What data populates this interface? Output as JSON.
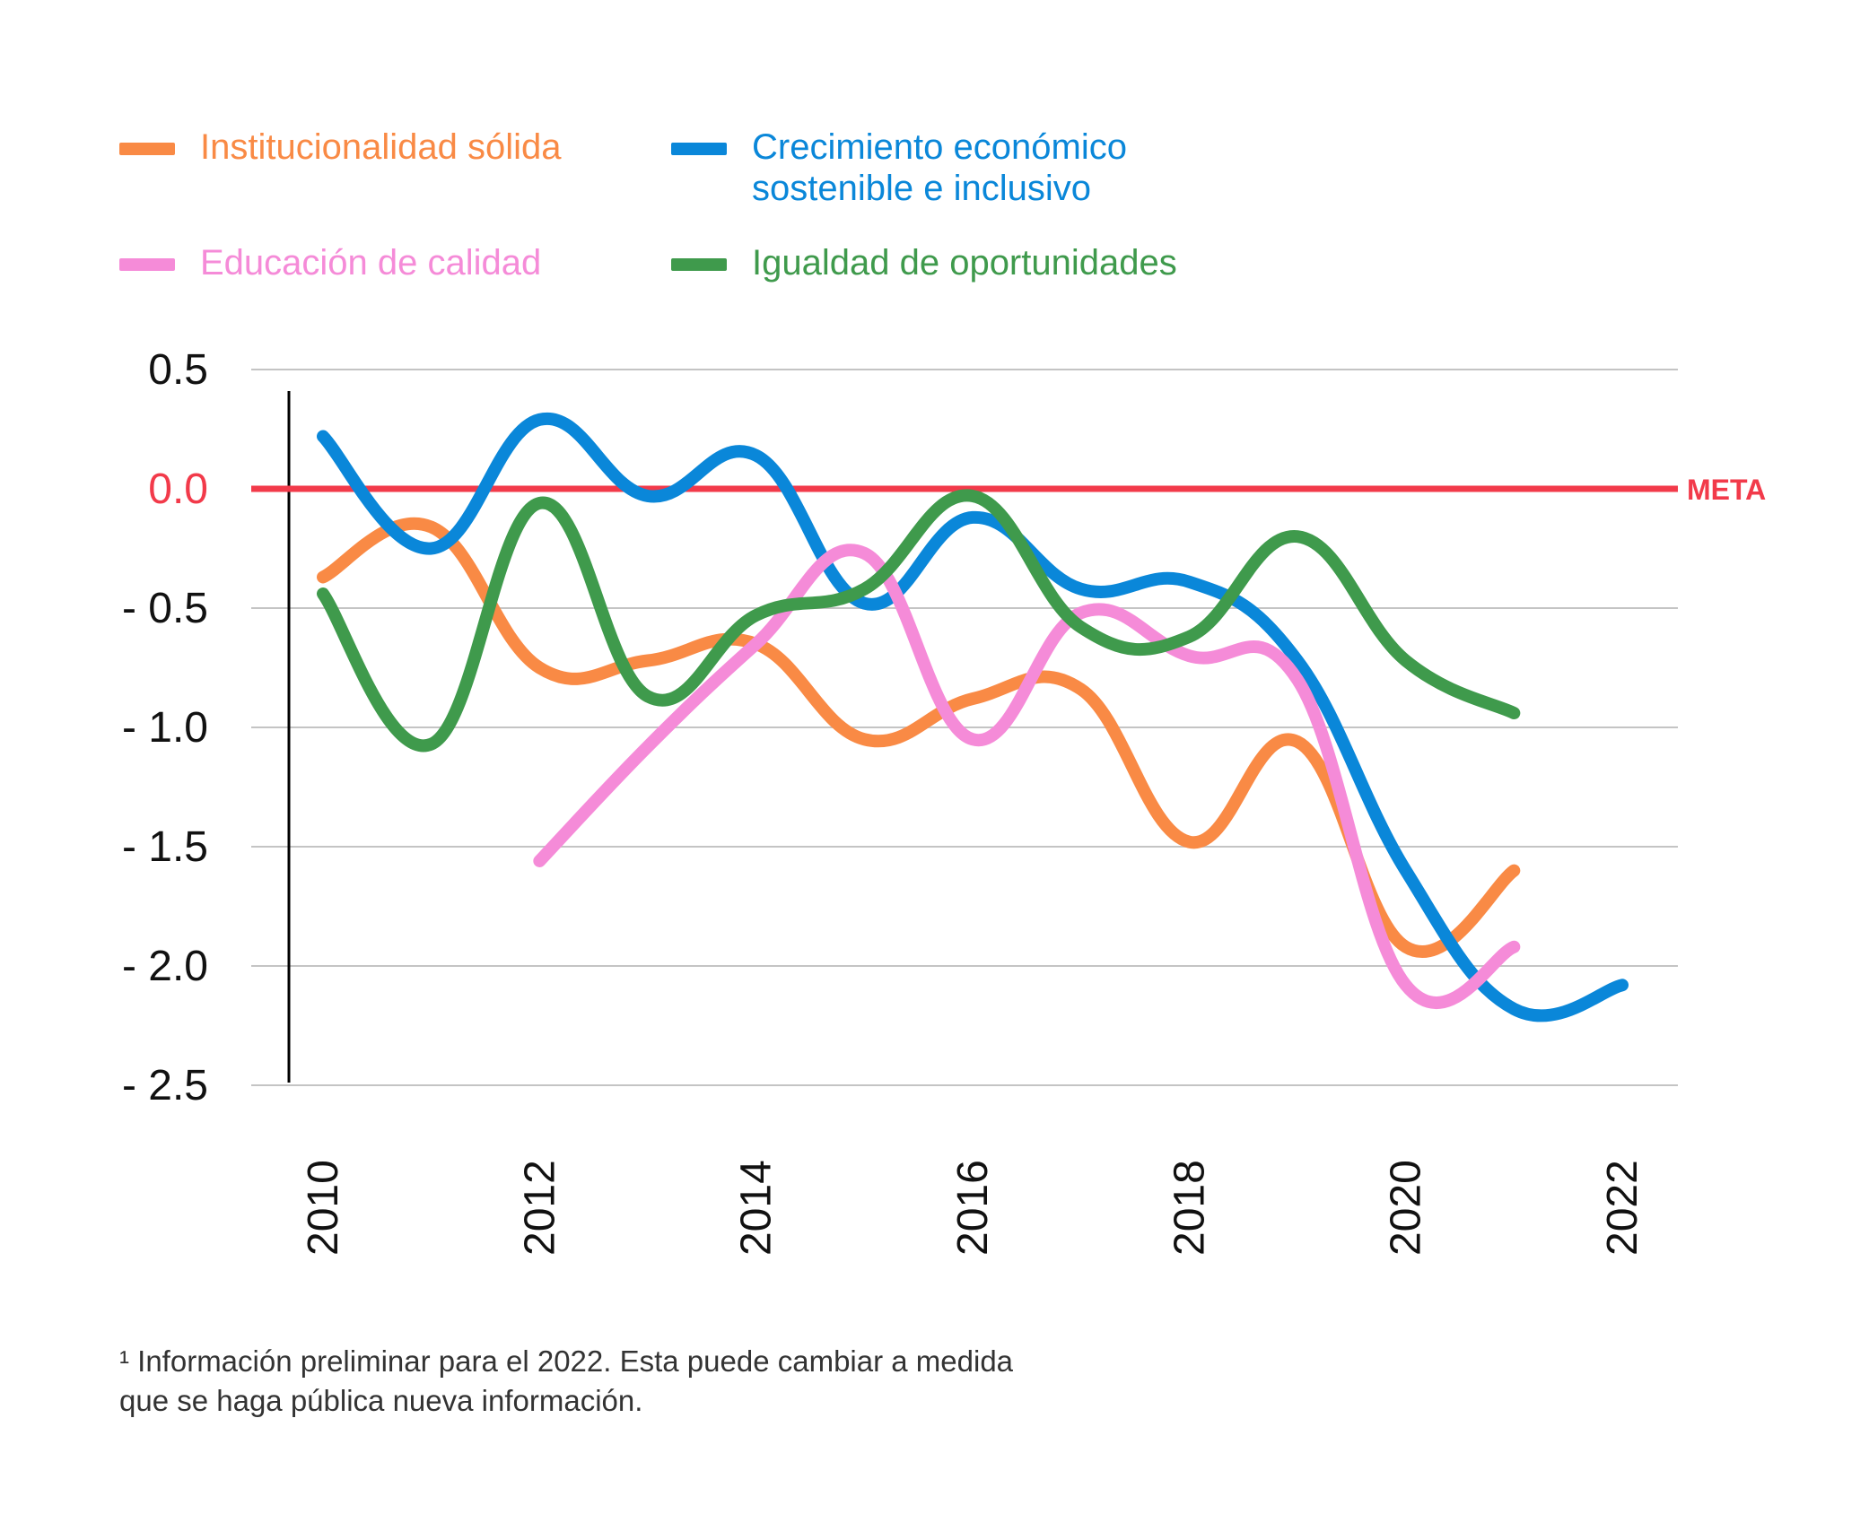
{
  "chart_data": {
    "type": "line",
    "y_tick_labels": [
      "0.5",
      "0.0",
      "- 0.5",
      "- 1.0",
      "- 1.5",
      "- 2.0",
      "- 2.5"
    ],
    "y_tick_values": [
      0.5,
      0.0,
      -0.5,
      -1.0,
      -1.5,
      -2.0,
      -2.5
    ],
    "ylim": [
      -2.5,
      0.5
    ],
    "x_tick_labels": [
      "2010",
      "2012",
      "2014",
      "2016",
      "2018",
      "2020",
      "2022"
    ],
    "x_tick_values": [
      2010,
      2012,
      2014,
      2016,
      2018,
      2020,
      2022
    ],
    "xlim": [
      2009.7,
      2022.9
    ],
    "grid": true,
    "legend_position": "top-left",
    "reference_line": {
      "label": "META",
      "value": 0.0,
      "color": "#f23a4a"
    },
    "series": [
      {
        "name": "Institucionalidad sólida",
        "color": "#f98a45",
        "points": [
          [
            2010,
            -0.37
          ],
          [
            2011,
            -0.16
          ],
          [
            2012,
            -0.75
          ],
          [
            2013,
            -0.72
          ],
          [
            2014,
            -0.65
          ],
          [
            2015,
            -1.05
          ],
          [
            2016,
            -0.88
          ],
          [
            2017,
            -0.84
          ],
          [
            2018,
            -1.48
          ],
          [
            2019,
            -1.06
          ],
          [
            2020,
            -1.92
          ],
          [
            2021,
            -1.6
          ]
        ]
      },
      {
        "name": "Crecimiento económico\nsostenible e inclusivo",
        "color": "#0a87d9",
        "points": [
          [
            2010,
            0.22
          ],
          [
            2011,
            -0.25
          ],
          [
            2012,
            0.29
          ],
          [
            2013,
            -0.03
          ],
          [
            2014,
            0.14
          ],
          [
            2015,
            -0.48
          ],
          [
            2016,
            -0.12
          ],
          [
            2017,
            -0.42
          ],
          [
            2018,
            -0.39
          ],
          [
            2019,
            -0.72
          ],
          [
            2020,
            -1.6
          ],
          [
            2021,
            -2.18
          ],
          [
            2022,
            -2.08
          ]
        ]
      },
      {
        "name": "Educación de calidad",
        "color": "#f58bd8",
        "points": [
          [
            2012,
            -1.56
          ],
          [
            2013,
            -1.08
          ],
          [
            2014,
            -0.65
          ],
          [
            2015,
            -0.27
          ],
          [
            2016,
            -1.05
          ],
          [
            2017,
            -0.52
          ],
          [
            2018,
            -0.7
          ],
          [
            2019,
            -0.8
          ],
          [
            2020,
            -2.08
          ],
          [
            2021,
            -1.92
          ]
        ]
      },
      {
        "name": "Igualdad de oportunidades",
        "color": "#3f9a4c",
        "points": [
          [
            2010,
            -0.44
          ],
          [
            2011,
            -1.07
          ],
          [
            2012,
            -0.06
          ],
          [
            2013,
            -0.87
          ],
          [
            2014,
            -0.53
          ],
          [
            2015,
            -0.42
          ],
          [
            2016,
            -0.03
          ],
          [
            2017,
            -0.58
          ],
          [
            2018,
            -0.62
          ],
          [
            2019,
            -0.2
          ],
          [
            2020,
            -0.72
          ],
          [
            2021,
            -0.94
          ]
        ]
      }
    ]
  },
  "footnote": "¹ Información preliminar para el 2022. Esta puede cambiar a medida\nque se haga pública nueva información."
}
